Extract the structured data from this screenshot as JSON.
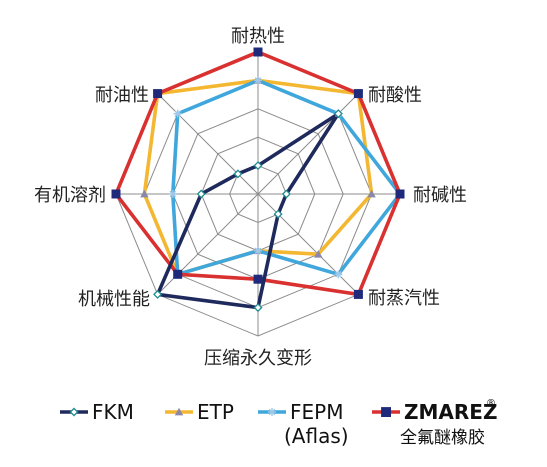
{
  "chart_data": {
    "type": "radar",
    "axes": [
      "耐热性",
      "耐酸性",
      "耐碱性",
      "耐蒸汽性",
      "压缩永久变形",
      "机械性能",
      "有机溶剂",
      "耐油性"
    ],
    "rlim": [
      0,
      5
    ],
    "grid": true,
    "legend_position": "bottom",
    "series": [
      {
        "name": "FKM",
        "color": "#1f2a5c",
        "marker": "diamond",
        "values": [
          1,
          4,
          1,
          1,
          4,
          5,
          2,
          1
        ]
      },
      {
        "name": "ETP",
        "color": "#f4b731",
        "marker": "triangle",
        "values": [
          4,
          5,
          4,
          3,
          2,
          4,
          4,
          5
        ]
      },
      {
        "name": "FEPM",
        "name_line2": "(Aflas)",
        "color": "#3fa7dc",
        "marker": "star",
        "values": [
          4,
          4,
          5,
          4,
          2,
          4,
          3,
          4
        ]
      },
      {
        "name": "ZMAREZ",
        "name_mark": "®",
        "name_line2": "全氟醚橡胶",
        "color": "#d93030",
        "marker": "square",
        "values": [
          5,
          5,
          5,
          5,
          3,
          4,
          5,
          5
        ]
      }
    ]
  }
}
